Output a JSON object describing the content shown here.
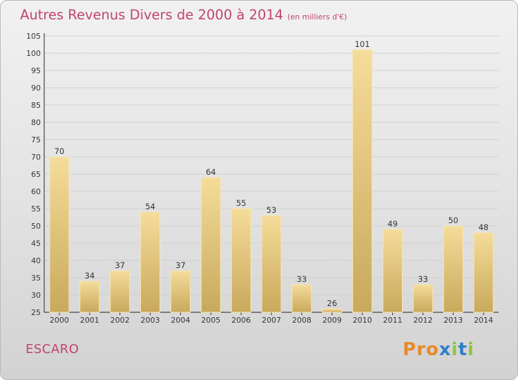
{
  "title": "Autres Revenus Divers de 2000 à 2014",
  "subtitle": "(en milliers d'€)",
  "commune": "ESCARO",
  "logo": "Proxiti",
  "colors": {
    "title": "#c2446c",
    "bar_light": "#f5dc9a",
    "bar_dark": "#c8a95c",
    "logo_letters": [
      "#e8892a",
      "#e8892a",
      "#e8892a",
      "#2f7fc8",
      "#8cc63e",
      "#2f7fc8",
      "#8cc63e"
    ]
  },
  "chart_data": {
    "type": "bar",
    "categories": [
      "2000",
      "2001",
      "2002",
      "2003",
      "2004",
      "2005",
      "2006",
      "2007",
      "2008",
      "2009",
      "2010",
      "2011",
      "2012",
      "2013",
      "2014"
    ],
    "values": [
      70,
      34,
      37,
      54,
      37,
      64,
      55,
      53,
      33,
      26,
      101,
      49,
      33,
      50,
      48
    ],
    "ylim": [
      25,
      105
    ],
    "yticks": [
      25,
      30,
      35,
      40,
      45,
      50,
      55,
      60,
      65,
      70,
      75,
      80,
      85,
      90,
      95,
      100,
      105
    ],
    "grid": true,
    "data_labels": true
  }
}
